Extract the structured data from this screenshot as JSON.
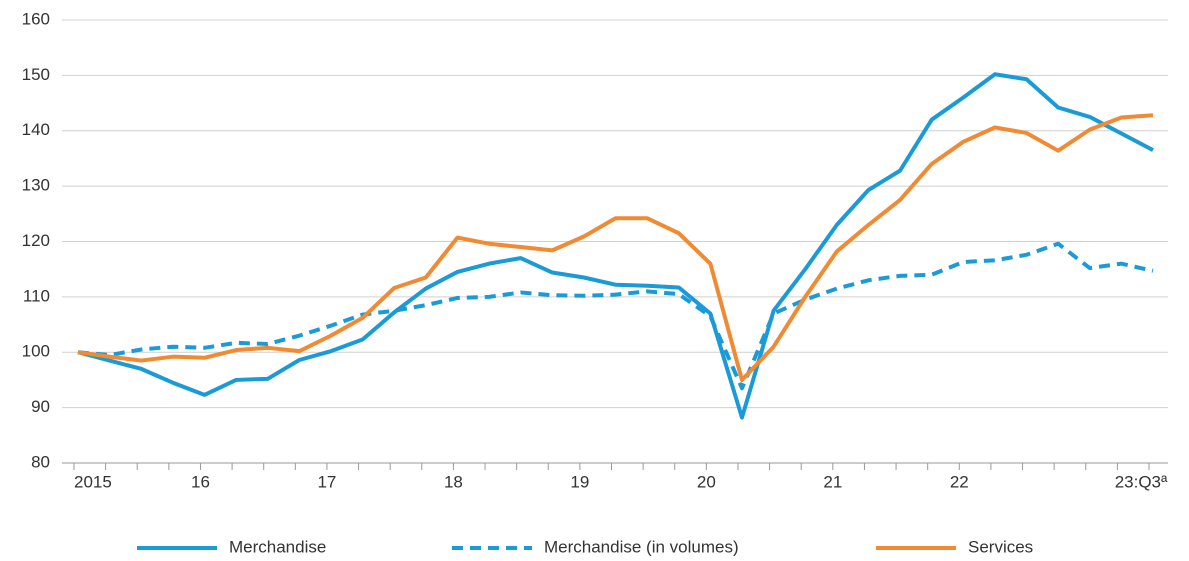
{
  "chart_data": {
    "type": "line",
    "categories": [
      "2015",
      null,
      null,
      null,
      "16",
      null,
      null,
      null,
      "17",
      null,
      null,
      null,
      "18",
      null,
      null,
      null,
      "19",
      null,
      null,
      null,
      "20",
      null,
      null,
      null,
      "21",
      null,
      null,
      null,
      "22",
      null,
      null,
      null,
      null,
      null,
      "23:Q3ª"
    ],
    "series": [
      {
        "name": "Merchandise",
        "color": "#1a9bd7",
        "dashed": false,
        "values": [
          100,
          98.5,
          97,
          94.5,
          92.3,
          95,
          95.2,
          98.6,
          100.2,
          102.3,
          107.2,
          111.5,
          114.5,
          116,
          117,
          114.4,
          113.5,
          112.2,
          112,
          111.7,
          107,
          88.2,
          107.5,
          115,
          123,
          129.3,
          132.8,
          142,
          146,
          150.2,
          149.3,
          144.2,
          142.5,
          139.5,
          136.5
        ]
      },
      {
        "name": "Merchandise (in volumes)",
        "color": "#1a9bd7",
        "dashed": true,
        "values": [
          100,
          99.5,
          100.5,
          101,
          100.8,
          101.7,
          101.5,
          103,
          104.8,
          106.8,
          107.5,
          108.5,
          109.8,
          110,
          110.8,
          110.3,
          110.2,
          110.4,
          111,
          110.5,
          106.5,
          93.5,
          107,
          109.5,
          111.5,
          113,
          113.8,
          114,
          116.3,
          116.6,
          117.6,
          119.6,
          115.2,
          116,
          114.7
        ]
      },
      {
        "name": "Services",
        "color": "#f08a33",
        "dashed": false,
        "values": [
          100,
          99.2,
          98.5,
          99.2,
          99,
          100.4,
          100.8,
          100.2,
          103,
          106.2,
          111.6,
          113.5,
          120.7,
          119.6,
          119,
          118.4,
          120.9,
          124.2,
          124.2,
          121.5,
          116,
          95,
          101,
          110,
          118.2,
          123,
          127.5,
          134,
          138,
          140.6,
          139.6,
          136.4,
          140.2,
          142.4,
          142.8
        ]
      }
    ],
    "ylim": [
      80,
      160
    ],
    "yticks": [
      80,
      90,
      100,
      110,
      120,
      130,
      140,
      150,
      160
    ],
    "grid": true,
    "legend": "bottom"
  }
}
